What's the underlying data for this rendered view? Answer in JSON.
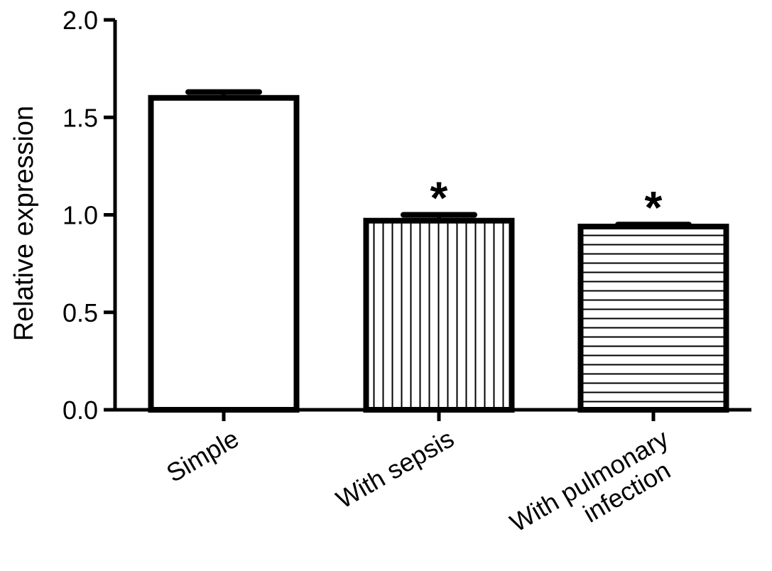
{
  "chart_data": {
    "type": "bar",
    "title": "",
    "xlabel": "",
    "ylabel": "Relative expression",
    "ylim": [
      0,
      2.0
    ],
    "yticks": [
      "0.0",
      "0.5",
      "1.0",
      "1.5",
      "2.0"
    ],
    "grid": false,
    "categories": [
      [
        "Simple"
      ],
      [
        "With sepsis"
      ],
      [
        "With pulmonary",
        "infection"
      ]
    ],
    "values": [
      1.6,
      0.97,
      0.94
    ],
    "errors": [
      0.03,
      0.03,
      0.01
    ],
    "fill_patterns": [
      "none",
      "vertical-lines",
      "horizontal-lines"
    ],
    "significance": [
      "",
      "*",
      "*"
    ],
    "colors": {
      "bar_stroke": "#000000",
      "bar_fill": "#ffffff",
      "axis": "#000000"
    }
  }
}
